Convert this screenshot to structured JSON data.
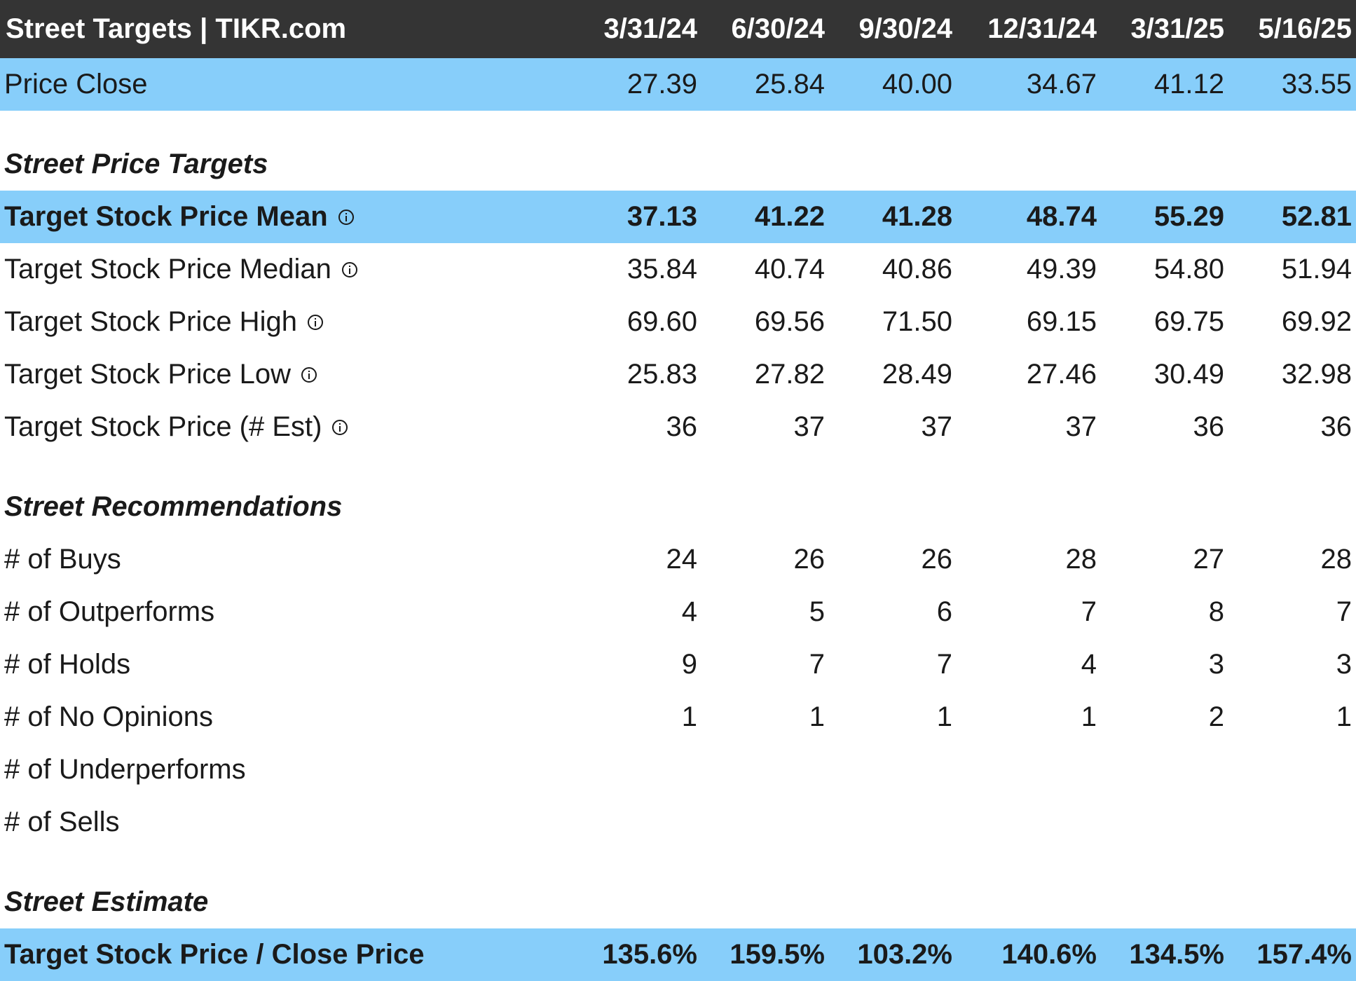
{
  "header": {
    "title": "Street Targets | TIKR.com",
    "columns": [
      "3/31/24",
      "6/30/24",
      "9/30/24",
      "12/31/24",
      "3/31/25",
      "5/16/25"
    ]
  },
  "price_close": {
    "label": "Price Close",
    "values": [
      "27.39",
      "25.84",
      "40.00",
      "34.67",
      "41.12",
      "33.55"
    ]
  },
  "price_targets": {
    "section_title": "Street Price Targets",
    "rows": [
      {
        "label": "Target Stock Price Mean",
        "values": [
          "37.13",
          "41.22",
          "41.28",
          "48.74",
          "55.29",
          "52.81"
        ]
      },
      {
        "label": "Target Stock Price Median",
        "values": [
          "35.84",
          "40.74",
          "40.86",
          "49.39",
          "54.80",
          "51.94"
        ]
      },
      {
        "label": "Target Stock Price High",
        "values": [
          "69.60",
          "69.56",
          "71.50",
          "69.15",
          "69.75",
          "69.92"
        ]
      },
      {
        "label": "Target Stock Price Low",
        "values": [
          "25.83",
          "27.82",
          "28.49",
          "27.46",
          "30.49",
          "32.98"
        ]
      },
      {
        "label": "Target Stock Price (# Est)",
        "values": [
          "36",
          "37",
          "37",
          "37",
          "36",
          "36"
        ]
      }
    ]
  },
  "recommendations": {
    "section_title": "Street Recommendations",
    "rows": [
      {
        "label": "# of Buys",
        "values": [
          "24",
          "26",
          "26",
          "28",
          "27",
          "28"
        ]
      },
      {
        "label": "# of Outperforms",
        "values": [
          "4",
          "5",
          "6",
          "7",
          "8",
          "7"
        ]
      },
      {
        "label": "# of Holds",
        "values": [
          "9",
          "7",
          "7",
          "4",
          "3",
          "3"
        ]
      },
      {
        "label": "# of No Opinions",
        "values": [
          "1",
          "1",
          "1",
          "1",
          "2",
          "1"
        ]
      },
      {
        "label": "# of Underperforms",
        "values": [
          "",
          "",
          "",
          "",
          "",
          ""
        ]
      },
      {
        "label": "# of Sells",
        "values": [
          "",
          "",
          "",
          "",
          "",
          ""
        ]
      }
    ]
  },
  "estimate": {
    "section_title": "Street Estimate",
    "rows": [
      {
        "label": "Target Stock Price / Close Price",
        "values": [
          "135.6%",
          "159.5%",
          "103.2%",
          "140.6%",
          "134.5%",
          "157.4%"
        ]
      }
    ]
  },
  "icons": {
    "info": "info-circle-icon"
  },
  "colors": {
    "header_bg": "#343434",
    "highlight_bg": "#87cefa"
  }
}
